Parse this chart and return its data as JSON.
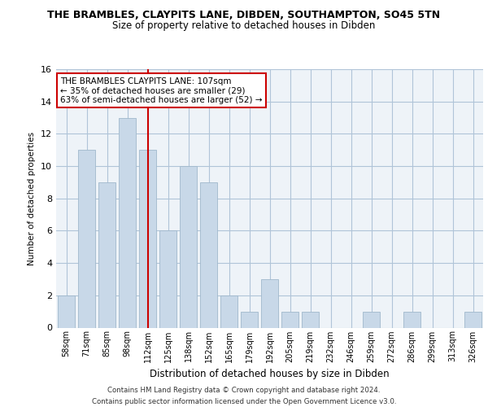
{
  "title": "THE BRAMBLES, CLAYPITS LANE, DIBDEN, SOUTHAMPTON, SO45 5TN",
  "subtitle": "Size of property relative to detached houses in Dibden",
  "xlabel": "Distribution of detached houses by size in Dibden",
  "ylabel": "Number of detached properties",
  "categories": [
    "58sqm",
    "71sqm",
    "85sqm",
    "98sqm",
    "112sqm",
    "125sqm",
    "138sqm",
    "152sqm",
    "165sqm",
    "179sqm",
    "192sqm",
    "205sqm",
    "219sqm",
    "232sqm",
    "246sqm",
    "259sqm",
    "272sqm",
    "286sqm",
    "299sqm",
    "313sqm",
    "326sqm"
  ],
  "values": [
    2,
    11,
    9,
    13,
    11,
    6,
    10,
    9,
    2,
    1,
    3,
    1,
    1,
    0,
    0,
    1,
    0,
    1,
    0,
    0,
    1
  ],
  "bar_color": "#c8d8e8",
  "bar_edge_color": "#a0b8cc",
  "grid_color": "#b0c4d8",
  "background_color": "#eef3f8",
  "ref_line_x": 4,
  "annotation_text_line1": "THE BRAMBLES CLAYPITS LANE: 107sqm",
  "annotation_text_line2": "← 35% of detached houses are smaller (29)",
  "annotation_text_line3": "63% of semi-detached houses are larger (52) →",
  "annotation_box_color": "#ffffff",
  "annotation_border_color": "#cc0000",
  "ref_line_color": "#cc0000",
  "footer_line1": "Contains HM Land Registry data © Crown copyright and database right 2024.",
  "footer_line2": "Contains public sector information licensed under the Open Government Licence v3.0.",
  "ylim": [
    0,
    16
  ],
  "yticks": [
    0,
    2,
    4,
    6,
    8,
    10,
    12,
    14,
    16
  ]
}
